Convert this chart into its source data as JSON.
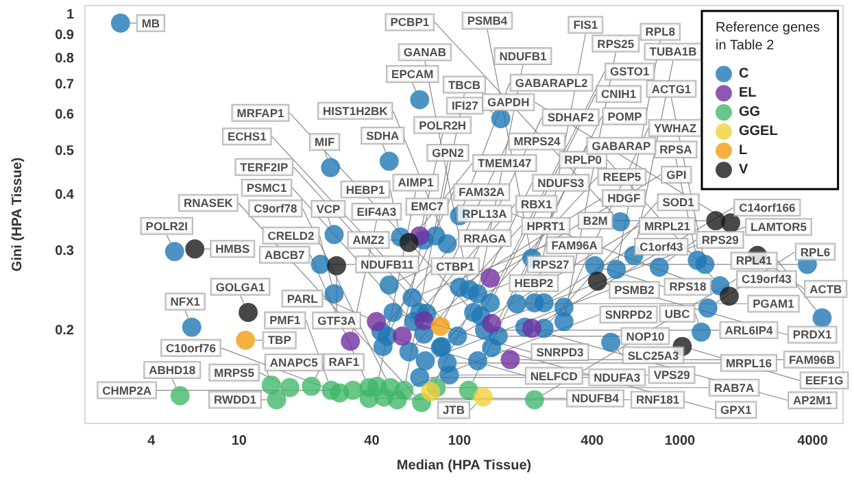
{
  "chart_data": {
    "type": "scatter",
    "xlabel": "Median (HPA Tissue)",
    "ylabel": "Gini (HPA Tissue)",
    "legend_title": "Reference genes in Table 2",
    "legend": "top right",
    "marker": "circle",
    "log": "xy",
    "xlim": [
      2,
      5500
    ],
    "ylim": [
      0.125,
      1.05
    ],
    "xticks": [
      4,
      10,
      40,
      100,
      400,
      1000,
      4000
    ],
    "yticks": [
      0.2,
      0.3,
      0.4,
      0.5,
      0.6,
      0.7,
      0.8,
      0.9,
      1
    ],
    "series": [
      {
        "name": "C",
        "color": "#1f78b4",
        "x": [
          2.9,
          66,
          154,
          48,
          26,
          5.1,
          27,
          23.4,
          27,
          6.1,
          54,
          78,
          100,
          69,
          88,
          48,
          61,
          50,
          66,
          71,
          62,
          44,
          69,
          83,
          59,
          70,
          47,
          90,
          82,
          98,
          121,
          125,
          100,
          111,
          121,
          138,
          130,
          150,
          140,
          182,
          219,
          242,
          198,
          242,
          298,
          298,
          486,
          116,
          213,
          537,
          618,
          411,
          515,
          807,
          1200,
          1300,
          3790,
          1520,
          1340,
          4420,
          1250,
          45,
          66,
          88
        ],
        "values": [
          0.96,
          0.65,
          0.59,
          0.475,
          0.46,
          0.3,
          0.327,
          0.281,
          0.242,
          0.204,
          0.323,
          0.325,
          0.36,
          0.318,
          0.312,
          0.253,
          0.237,
          0.22,
          0.22,
          0.219,
          0.21,
          0.2,
          0.197,
          0.185,
          0.18,
          0.172,
          0.195,
          0.16,
          0.184,
          0.195,
          0.172,
          0.216,
          0.25,
          0.247,
          0.242,
          0.231,
          0.201,
          0.195,
          0.184,
          0.23,
          0.231,
          0.231,
          0.204,
          0.203,
          0.226,
          0.21,
          0.189,
          0.22,
          0.29,
          0.349,
          0.294,
          0.279,
          0.274,
          0.277,
          0.287,
          0.281,
          0.281,
          0.252,
          0.225,
          0.214,
          0.199,
          0.185,
          0.158,
          0.17
        ],
        "value_labels": [
          "MB",
          "EPCAM",
          "IFI27",
          "SDHA",
          "MIF",
          "POLR2I",
          "VCP",
          "NDUFB11",
          "CRELD2",
          "NFX1",
          "HEBP1",
          "TBCB",
          "GABARAPL2",
          "AMZ2",
          "HIST1H2BK",
          "CTBP1",
          "FAM96A",
          "SNRPD3",
          "RBX1",
          "TERF2IP",
          "HEBP2",
          "RRAGA",
          "PSMC1",
          "MRPL21",
          "HPRT1",
          "PSMB2",
          "NELFCD",
          "VPS29",
          "REEP5",
          "ECHS1",
          "POMP",
          "GSTO1",
          "HDGF",
          "GANAB",
          "NDUFB1",
          "CNIH1",
          "ARL6IP4",
          "NOP10",
          "GPX1",
          "PGAM1",
          "FIS1",
          "C1orf43",
          "AP2M1",
          "SOD1",
          "YWHAZ",
          "RPS25",
          "SLC25A3",
          "MRFAP1",
          "PSMB4",
          "PCBP1",
          "TUBA1B",
          "RPS18",
          "RPL8",
          "RPS29",
          "RPSA",
          "ACTG1",
          "RPS27",
          "RPLP0",
          "RPL6",
          "RPL41",
          "UBC",
          "FAM32A",
          "NDUFA3",
          "MRPL16"
        ]
      },
      {
        "name": "EL",
        "color": "#7030a0",
        "x": [
          66,
          138,
          213,
          170,
          42,
          55,
          32,
          69,
          140
        ],
        "values": [
          0.325,
          0.262,
          0.203,
          0.173,
          0.21,
          0.195,
          0.19,
          0.211,
          0.208
        ],
        "value_labels": [
          "POLR2H",
          "GPI",
          "C14orf166",
          "FAM96B",
          "PARL",
          "EMC7",
          "EIF4A3",
          "MRPS24",
          "LAMTOR5"
        ]
      },
      {
        "name": "GG",
        "color": "#41b86a",
        "x": [
          5.4,
          14.8,
          14,
          17,
          21.3,
          26.2,
          28.6,
          38.9,
          42.3,
          48.6,
          56,
          38.9,
          45.4,
          52.2,
          67.3,
          78.5,
          110,
          219,
          32.9
        ],
        "values": [
          0.144,
          0.141,
          0.152,
          0.15,
          0.151,
          0.148,
          0.146,
          0.15,
          0.151,
          0.15,
          0.148,
          0.142,
          0.143,
          0.141,
          0.139,
          0.15,
          0.148,
          0.141,
          0.148
        ],
        "value_labels": [
          "ABHD18",
          "RWDD1",
          "ANAPC5",
          "MRPS5",
          "RAF1",
          "PMF1",
          "C10orf76",
          "ABCB7",
          "AIMP1",
          "C9orf78",
          "GPN2",
          "NDUFB4",
          "SNRPD2",
          "RNF181",
          "RNASEK",
          "RAB7A",
          "GABARAP",
          "C19orf43",
          "CHMP2A"
        ]
      },
      {
        "name": "GGEL",
        "color": "#f2d13b",
        "x": [
          74,
          128
        ],
        "values": [
          0.147,
          0.143
        ],
        "value_labels": [
          "NDUFS3",
          "JTB"
        ]
      },
      {
        "name": "L",
        "color": "#f39c12",
        "x": [
          10.7,
          82
        ],
        "values": [
          0.191,
          0.205
        ],
        "value_labels": [
          "TBP",
          "SDHAF2"
        ]
      },
      {
        "name": "V",
        "color": "#1a1a1a",
        "x": [
          6.3,
          11,
          27.7,
          59,
          423,
          1455,
          1700,
          2250,
          1675,
          1025
        ],
        "values": [
          0.304,
          0.22,
          0.279,
          0.314,
          0.258,
          0.351,
          0.347,
          0.294,
          0.239,
          0.185
        ],
        "value_labels": [
          "HMBS",
          "GOLGA1",
          "GTF3A",
          "TMEM147",
          "PRDX1",
          "B2M",
          "GAPDH",
          "ACTB",
          "RPL13A",
          "EEF1G"
        ]
      }
    ]
  }
}
